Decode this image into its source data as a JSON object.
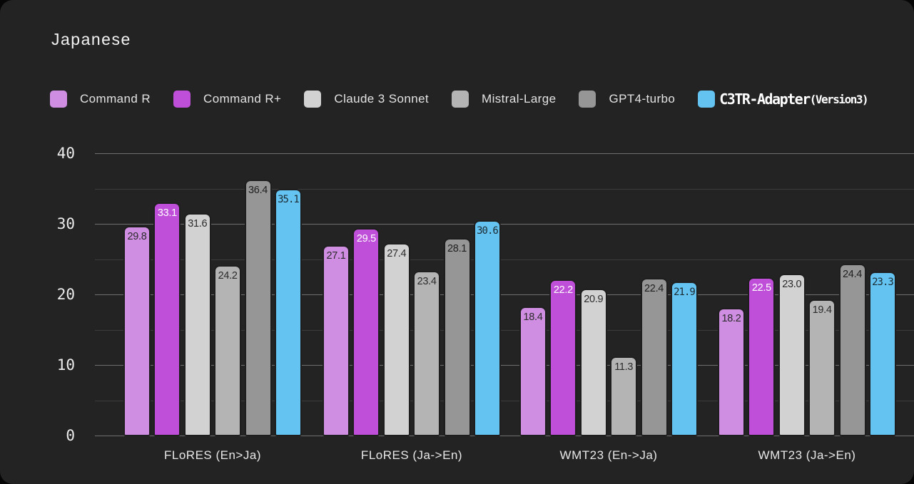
{
  "title": "Japanese",
  "legend": [
    {
      "label": "Command R",
      "color": "#cf8ee2"
    },
    {
      "label": "Command R+",
      "color": "#bf4fd9"
    },
    {
      "label": "Claude 3 Sonnet",
      "color": "#d2d2d2"
    },
    {
      "label": "Mistral-Large",
      "color": "#b4b4b4"
    },
    {
      "label": "GPT4-turbo",
      "color": "#969696"
    },
    {
      "label": "C3TR-Adapter",
      "suffix": "(Version3)",
      "color": "#64c3f0"
    }
  ],
  "chart_data": {
    "type": "bar",
    "title": "Japanese",
    "categories": [
      "FLoRES (En>Ja)",
      "FLoRES (Ja->En)",
      "WMT23 (En->Ja)",
      "WMT23 (Ja->En)"
    ],
    "series": [
      {
        "name": "Command R",
        "color": "#cf8ee2",
        "label_color": "#2b2b2b",
        "values": [
          29.8,
          27.1,
          18.4,
          18.2
        ]
      },
      {
        "name": "Command R+",
        "color": "#bf4fd9",
        "label_color": "#ffffff",
        "values": [
          33.1,
          29.5,
          22.2,
          22.5
        ]
      },
      {
        "name": "Claude 3 Sonnet",
        "color": "#d2d2d2",
        "label_color": "#2b2b2b",
        "values": [
          31.6,
          27.4,
          20.9,
          23.0
        ]
      },
      {
        "name": "Mistral-Large",
        "color": "#b4b4b4",
        "label_color": "#2b2b2b",
        "values": [
          24.2,
          23.4,
          11.3,
          19.4
        ]
      },
      {
        "name": "GPT4-turbo",
        "color": "#969696",
        "label_color": "#1f1f1f",
        "values": [
          36.4,
          28.1,
          22.4,
          24.4
        ]
      },
      {
        "name": "C3TR-Adapter (Version3)",
        "color": "#64c3f0",
        "label_color": "#1c2b33",
        "values": [
          35.1,
          30.6,
          21.9,
          23.3
        ]
      }
    ],
    "xlabel": "",
    "ylabel": "",
    "ylim": [
      0,
      40
    ],
    "yticks": [
      0,
      10,
      20,
      30,
      40
    ],
    "minor_gridlines": [
      5,
      15,
      25,
      35
    ],
    "grid": true,
    "grid_color_major": "#6f6f6f",
    "grid_color_minor": "#3c3c3c",
    "legend_position": "top",
    "value_labels": "inside-top",
    "value_label_decimals": 1
  }
}
